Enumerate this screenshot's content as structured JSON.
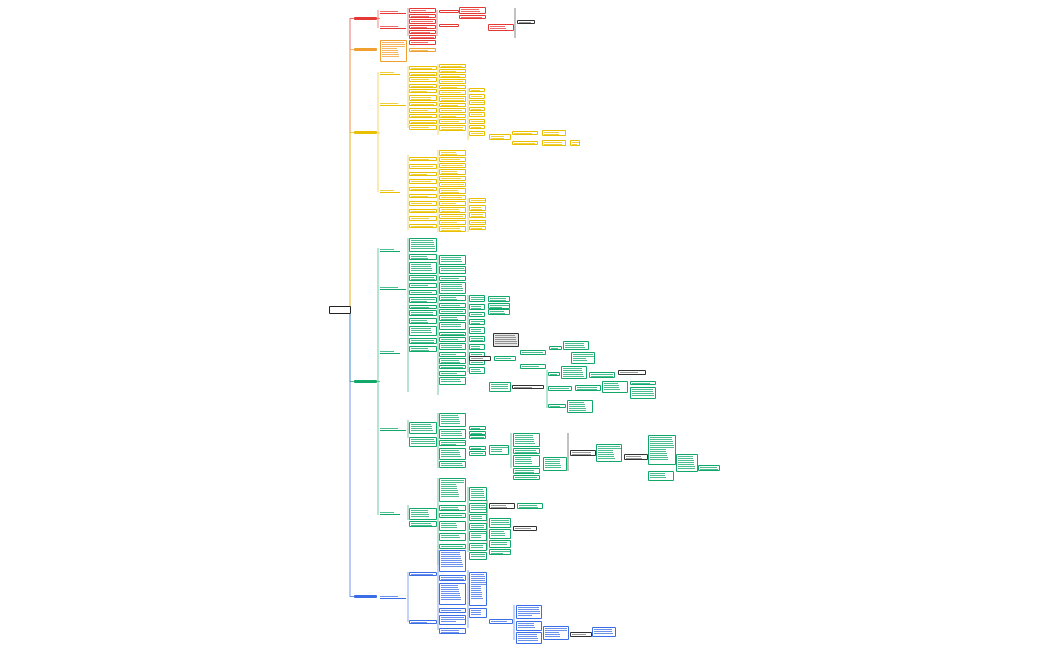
{
  "central_topic": "",
  "branches": [
    {
      "id": "red",
      "label": "",
      "color": "#e53935"
    },
    {
      "id": "orange",
      "label": "",
      "color": "#f0a030"
    },
    {
      "id": "yellow",
      "label": "",
      "color": "#e8c000"
    },
    {
      "id": "green",
      "label": "",
      "color": "#12a86a"
    },
    {
      "id": "blue",
      "label": "",
      "color": "#3b6ee6"
    }
  ],
  "line_color_neutral": "#333333"
}
